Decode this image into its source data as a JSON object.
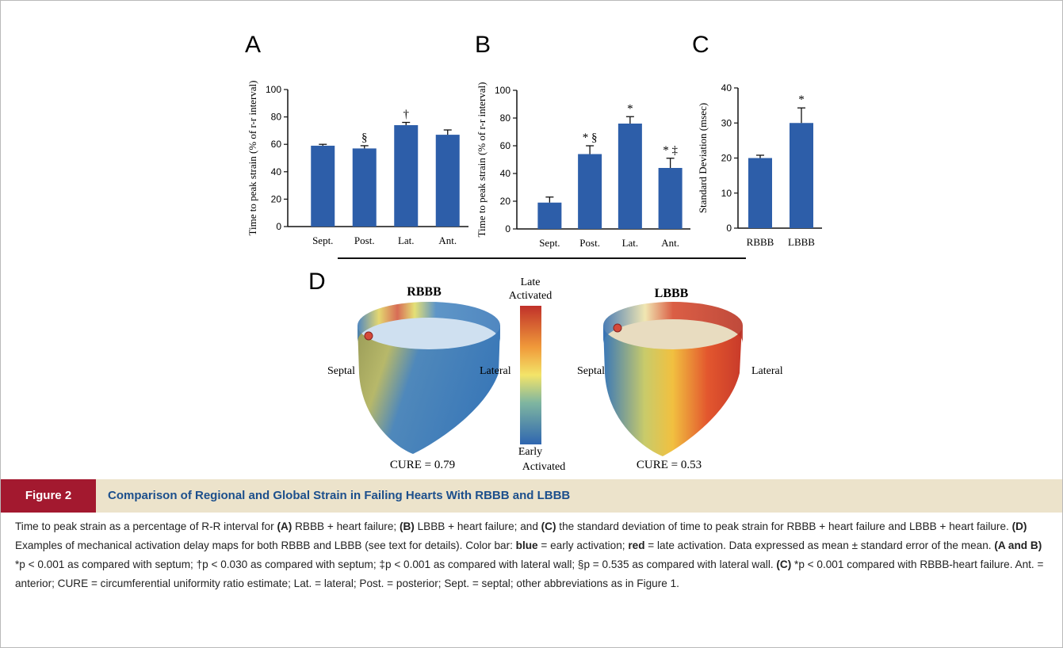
{
  "chart_data": [
    {
      "type": "bar",
      "panel_label": "A",
      "ylabel": "Time to peak strain  (% of r-r interval)",
      "categories": [
        "Sept.",
        "Post.",
        "Lat.",
        "Ant."
      ],
      "values": [
        59,
        57,
        74,
        67
      ],
      "errors": [
        1,
        2,
        2,
        3.5
      ],
      "bar_annotations": [
        null,
        "§",
        "†",
        null
      ],
      "color": "#2d5ea9",
      "ylim": [
        0,
        100
      ],
      "yticks": [
        0,
        20,
        40,
        60,
        80,
        100
      ]
    },
    {
      "type": "bar",
      "panel_label": "B",
      "ylabel": "Time to peak strain  (% of r-r interval)",
      "categories": [
        "Sept.",
        "Post.",
        "Lat.",
        "Ant."
      ],
      "values": [
        19,
        54,
        76,
        44
      ],
      "errors": [
        4,
        6,
        5,
        7
      ],
      "bar_annotations": [
        null,
        "* §",
        "*",
        "* ‡"
      ],
      "color": "#2d5ea9",
      "ylim": [
        0,
        100
      ],
      "yticks": [
        0,
        20,
        40,
        60,
        80,
        100
      ]
    },
    {
      "type": "bar",
      "panel_label": "C",
      "ylabel": "Standard Deviation (msec)",
      "categories": [
        "RBBB",
        "LBBB"
      ],
      "values": [
        20,
        30
      ],
      "errors": [
        0.8,
        4.3
      ],
      "bar_annotations": [
        null,
        "*"
      ],
      "color": "#2d5ea9",
      "ylim": [
        0,
        40
      ],
      "yticks": [
        0,
        10,
        20,
        30,
        40
      ]
    }
  ],
  "panel_d": {
    "panel_label": "D",
    "left_title": "RBBB",
    "right_title": "LBBB",
    "left_septal": "Septal",
    "left_lateral": "Lateral",
    "right_septal": "Septal",
    "right_lateral": "Lateral",
    "left_cure": "CURE = 0.79",
    "right_cure": "CURE = 0.53",
    "colorbar_top": [
      "Late",
      "Activated"
    ],
    "colorbar_bottom": [
      "Early",
      "Activated"
    ]
  },
  "caption": {
    "label": "Figure 2",
    "title": "Comparison of Regional and Global Strain in Failing Hearts With RBBB and LBBB",
    "body": [
      {
        "text": "Time to peak strain as a percentage of R-R interval for ",
        "bold": false
      },
      {
        "text": "(A)",
        "bold": true
      },
      {
        "text": " RBBB + heart failure; ",
        "bold": false
      },
      {
        "text": "(B)",
        "bold": true
      },
      {
        "text": " LBBB + heart failure; and ",
        "bold": false
      },
      {
        "text": "(C)",
        "bold": true
      },
      {
        "text": " the standard deviation of time to peak strain for RBBB + heart failure and LBBB + heart failure. ",
        "bold": false
      },
      {
        "text": "(D)",
        "bold": true
      },
      {
        "text": " Examples of mechanical activation delay maps for both RBBB and LBBB (see text for details). Color bar: ",
        "bold": false
      },
      {
        "text": "blue",
        "bold": true
      },
      {
        "text": " = early activation; ",
        "bold": false
      },
      {
        "text": "red",
        "bold": true
      },
      {
        "text": " = late activation. Data expressed as mean ± standard error of the mean. ",
        "bold": false
      },
      {
        "text": "(A and B)",
        "bold": true
      },
      {
        "text": " *p < 0.001 as compared with septum; †p < 0.030 as compared with septum; ‡p < 0.001 as compared with lateral wall; §p = 0.535 as compared with lateral wall. ",
        "bold": false
      },
      {
        "text": "(C)",
        "bold": true
      },
      {
        "text": " *p < 0.001 compared with RBBB-heart failure. Ant. = anterior; CURE = circumferential uniformity ratio estimate; Lat. = lateral; Post. = posterior; Sept. = septal; other abbreviations as in Figure 1.",
        "bold": false
      }
    ]
  }
}
